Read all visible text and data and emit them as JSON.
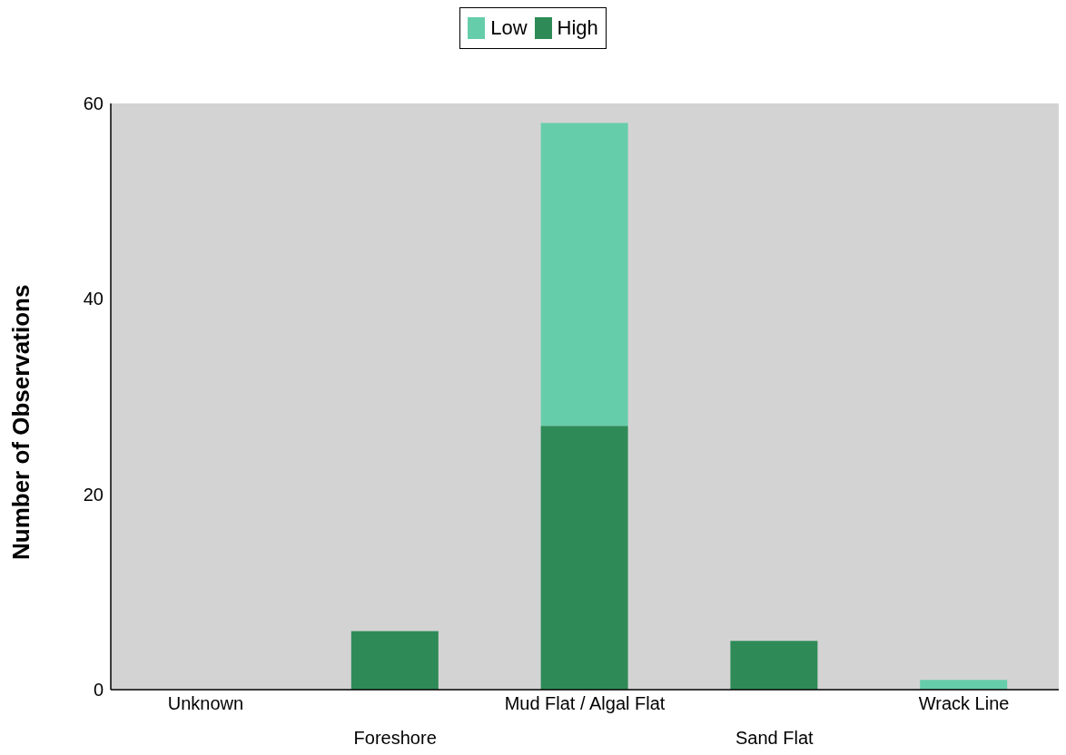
{
  "chart_data": {
    "type": "bar",
    "ylabel": "Number of Observations",
    "categories": [
      "Unknown",
      "Foreshore",
      "Mud Flat / Algal Flat",
      "Sand Flat",
      "Wrack Line"
    ],
    "series": [
      {
        "name": "High",
        "color": "#2e8b57",
        "values": [
          0,
          6,
          27,
          5,
          0
        ]
      },
      {
        "name": "Low",
        "color": "#66cdaa",
        "values": [
          0,
          0,
          31,
          0,
          1
        ]
      }
    ],
    "stacked": true,
    "ylim": [
      0,
      60
    ],
    "yticks": [
      0,
      20,
      40,
      60
    ],
    "grid": false,
    "legend": "top"
  }
}
